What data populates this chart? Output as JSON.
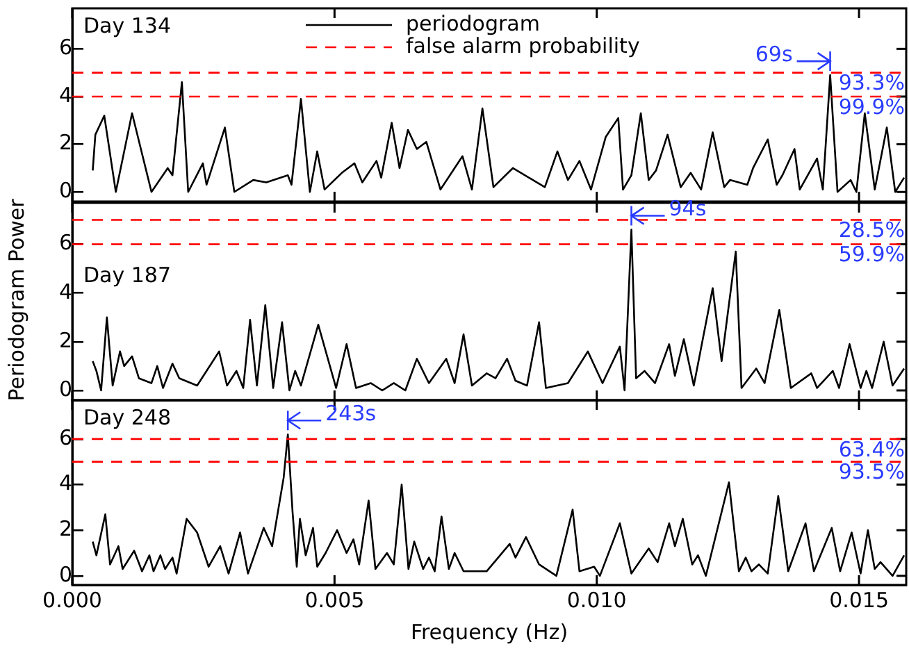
{
  "chart_data": [
    {
      "type": "line",
      "title": "Day 134",
      "legend": "top",
      "tick_labels": "y",
      "annotations": [
        "false alarm probability",
        {
          "text": "69s",
          "x": 0.01445,
          "y": 4.9
        },
        {
          "text": "93.3%",
          "y": 5
        },
        {
          "text": "99.9%",
          "y": 4
        }
      ],
      "xticks": [
        0,
        0.005,
        0.01,
        0.015
      ],
      "x": [
        0.00039,
        0.00044,
        0.00061,
        0.00083,
        0.00114,
        0.00151,
        0.00182,
        0.00191,
        0.00209,
        0.00221,
        0.00249,
        0.00256,
        0.00291,
        0.00309,
        0.00345,
        0.0037,
        0.00411,
        0.00418,
        0.00436,
        0.00453,
        0.00467,
        0.00481,
        0.00514,
        0.00538,
        0.00553,
        0.0058,
        0.00589,
        0.00609,
        0.00624,
        0.0064,
        0.00657,
        0.00675,
        0.00702,
        0.00744,
        0.00762,
        0.00782,
        0.00803,
        0.0084,
        0.00901,
        0.00925,
        0.00945,
        0.00967,
        0.00989,
        0.01017,
        0.01041,
        0.0105,
        0.01066,
        0.01084,
        0.01099,
        0.01113,
        0.01135,
        0.0116,
        0.01179,
        0.01199,
        0.01221,
        0.01243,
        0.01254,
        0.01287,
        0.01298,
        0.01326,
        0.01343,
        0.01354,
        0.01377,
        0.01387,
        0.0142,
        0.01431,
        0.01445,
        0.01459,
        0.01484,
        0.01495,
        0.01511,
        0.0153,
        0.01553,
        0.01569,
        0.01586
      ],
      "series": [
        {
          "name": "periodogram",
          "color": "#000000",
          "values": [
            0.9,
            2.4,
            3.2,
            0.0,
            3.3,
            0.0,
            1.0,
            0.7,
            4.6,
            0.0,
            1.2,
            0.3,
            2.7,
            0.0,
            0.5,
            0.4,
            0.7,
            0.3,
            3.9,
            0.0,
            1.7,
            0.1,
            0.8,
            1.2,
            0.4,
            1.3,
            0.6,
            2.9,
            1.0,
            2.6,
            1.8,
            2.1,
            0.1,
            1.5,
            0.1,
            3.5,
            0.2,
            1.0,
            0.2,
            1.7,
            0.5,
            1.3,
            0.1,
            2.3,
            3.1,
            0.1,
            0.7,
            3.3,
            0.5,
            0.9,
            2.4,
            0.2,
            0.8,
            0.1,
            2.5,
            0.2,
            0.5,
            0.3,
            1.0,
            2.2,
            0.3,
            0.7,
            1.8,
            0.1,
            1.4,
            0.1,
            4.9,
            0.0,
            0.5,
            0.0,
            3.3,
            0.1,
            2.7,
            0.0,
            0.6
          ]
        }
      ],
      "xlim": [
        0,
        0.0159
      ],
      "ylim": [
        -0.4,
        7.7
      ],
      "yticks": [
        0,
        2,
        4,
        6
      ],
      "ref_lines": [
        {
          "axis": "y",
          "value": 5,
          "color": "#ff0000",
          "line_style": "dashed"
        },
        {
          "axis": "y",
          "value": 4,
          "color": "#ff0000",
          "line_style": "dashed"
        }
      ]
    },
    {
      "type": "line",
      "title": "Day 187",
      "tick_labels": "y",
      "ylabel": "Periodogram Power",
      "annotations": [
        {
          "text": "94s",
          "x": 0.01066,
          "y": 6.6
        },
        {
          "text": "28.5%",
          "y": 7
        },
        {
          "text": "59.9%",
          "y": 6
        }
      ],
      "xticks": [
        0,
        0.005,
        0.01,
        0.015
      ],
      "x": [
        0.00039,
        0.00046,
        0.00055,
        0.00066,
        0.00077,
        0.00091,
        0.00099,
        0.00114,
        0.00127,
        0.00151,
        0.00162,
        0.00173,
        0.00191,
        0.00204,
        0.00238,
        0.0028,
        0.00295,
        0.00313,
        0.00326,
        0.00339,
        0.00352,
        0.00368,
        0.00383,
        0.004,
        0.00414,
        0.00425,
        0.00436,
        0.00469,
        0.00503,
        0.00523,
        0.00541,
        0.00569,
        0.00591,
        0.00613,
        0.00635,
        0.00657,
        0.0068,
        0.00713,
        0.00729,
        0.00746,
        0.00762,
        0.0079,
        0.00807,
        0.00829,
        0.00845,
        0.00867,
        0.0089,
        0.00903,
        0.00945,
        0.00983,
        0.01011,
        0.01044,
        0.01053,
        0.01066,
        0.01075,
        0.01091,
        0.01111,
        0.01138,
        0.01149,
        0.01166,
        0.01185,
        0.01221,
        0.01238,
        0.01265,
        0.01276,
        0.01304,
        0.0132,
        0.01348,
        0.0137,
        0.01409,
        0.0142,
        0.0145,
        0.01462,
        0.01482,
        0.01503,
        0.01514,
        0.01525,
        0.01547,
        0.01564,
        0.01586
      ],
      "values": [
        1.2,
        0.8,
        0.0,
        3.0,
        0.2,
        1.6,
        1.0,
        1.4,
        0.5,
        0.3,
        1.0,
        0.1,
        1.1,
        0.5,
        0.2,
        1.6,
        0.2,
        0.8,
        0.1,
        2.9,
        0.2,
        3.5,
        0.1,
        2.8,
        0.0,
        0.8,
        0.2,
        2.7,
        0.1,
        1.9,
        0.1,
        0.3,
        0.0,
        0.3,
        0.0,
        1.3,
        0.3,
        1.3,
        0.3,
        2.3,
        0.2,
        0.7,
        0.5,
        1.3,
        0.4,
        0.2,
        2.8,
        0.1,
        0.3,
        1.6,
        0.3,
        1.8,
        0.0,
        6.6,
        0.5,
        0.8,
        0.3,
        1.9,
        0.6,
        2.1,
        0.2,
        4.2,
        1.2,
        5.7,
        0.1,
        0.9,
        0.3,
        3.3,
        0.1,
        0.7,
        0.1,
        0.8,
        0.1,
        1.9,
        0.1,
        0.8,
        0.1,
        2.0,
        0.2,
        0.9
      ],
      "color": "#000000",
      "xlim": [
        0,
        0.0159
      ],
      "ylim": [
        -0.4,
        7.7
      ],
      "yticks": [
        0,
        2,
        4,
        6
      ],
      "ref_lines": [
        {
          "axis": "y",
          "value": 7,
          "color": "#ff0000",
          "line_style": "dashed"
        },
        {
          "axis": "y",
          "value": 6,
          "color": "#ff0000",
          "line_style": "dashed"
        }
      ]
    },
    {
      "type": "line",
      "title": "Day 248",
      "xlabel": "Frequency (Hz)",
      "annotations": [
        {
          "text": "243s",
          "x": 0.00411,
          "y": 6.2
        },
        {
          "text": "63.4%",
          "y": 6
        },
        {
          "text": "93.5%",
          "y": 5
        }
      ],
      "x": [
        0.00039,
        0.00046,
        0.00063,
        0.00072,
        0.00088,
        0.00096,
        0.00118,
        0.00133,
        0.00147,
        0.00155,
        0.00168,
        0.00177,
        0.00191,
        0.00199,
        0.00218,
        0.00238,
        0.0026,
        0.00282,
        0.00298,
        0.0032,
        0.00335,
        0.00365,
        0.00381,
        0.00403,
        0.00411,
        0.0042,
        0.00428,
        0.00434,
        0.00445,
        0.00459,
        0.00467,
        0.00483,
        0.00505,
        0.00523,
        0.00536,
        0.00547,
        0.00565,
        0.00578,
        0.006,
        0.00613,
        0.00628,
        0.00641,
        0.00652,
        0.00669,
        0.0068,
        0.00691,
        0.00704,
        0.00718,
        0.00729,
        0.00746,
        0.0079,
        0.00834,
        0.00845,
        0.00865,
        0.0089,
        0.00923,
        0.00954,
        0.00967,
        0.00995,
        0.01006,
        0.01044,
        0.01066,
        0.01099,
        0.01116,
        0.01138,
        0.01149,
        0.01164,
        0.01182,
        0.01193,
        0.01208,
        0.01252,
        0.01271,
        0.01284,
        0.01295,
        0.01309,
        0.01326,
        0.01346,
        0.01365,
        0.01398,
        0.01414,
        0.01448,
        0.01464,
        0.01486,
        0.01503,
        0.01517,
        0.0153,
        0.01541,
        0.01564,
        0.01586
      ],
      "values": [
        1.5,
        0.9,
        2.7,
        0.5,
        1.3,
        0.3,
        1.1,
        0.2,
        0.9,
        0.2,
        0.9,
        0.3,
        0.8,
        0.1,
        2.5,
        1.9,
        0.4,
        1.3,
        0.1,
        1.9,
        0.1,
        2.1,
        1.3,
        4.3,
        6.2,
        2.8,
        0.4,
        2.5,
        0.9,
        2.1,
        0.4,
        1.0,
        2.0,
        1.0,
        1.6,
        0.5,
        3.3,
        0.3,
        1.0,
        0.5,
        4.0,
        0.3,
        1.5,
        0.3,
        0.8,
        0.2,
        2.6,
        0.3,
        1.0,
        0.2,
        0.2,
        1.4,
        0.8,
        1.7,
        0.5,
        0.0,
        2.9,
        0.2,
        0.4,
        0.0,
        2.3,
        0.1,
        1.2,
        0.6,
        2.3,
        1.3,
        2.5,
        0.5,
        0.9,
        0.0,
        4.1,
        0.2,
        0.8,
        0.2,
        0.5,
        0.1,
        3.5,
        0.2,
        2.3,
        0.2,
        2.1,
        0.2,
        1.9,
        0.1,
        2.0,
        0.3,
        0.6,
        0.0,
        0.9
      ],
      "color": "#000000",
      "xlim": [
        0,
        0.0159
      ],
      "xticks": [
        {
          "value": 0,
          "label": "0.000"
        },
        {
          "value": 0.005,
          "label": "0.005"
        },
        {
          "value": 0.01,
          "label": "0.010"
        },
        {
          "value": 0.015,
          "label": "0.015"
        }
      ],
      "ylim": [
        -0.4,
        7.7
      ],
      "yticks": [
        0,
        2,
        4,
        6
      ],
      "ref_lines": [
        {
          "axis": "y",
          "value": 6,
          "color": "#ff0000",
          "line_style": "dashed"
        },
        {
          "axis": "y",
          "value": 5,
          "color": "#ff0000",
          "line_style": "dashed"
        }
      ]
    }
  ]
}
